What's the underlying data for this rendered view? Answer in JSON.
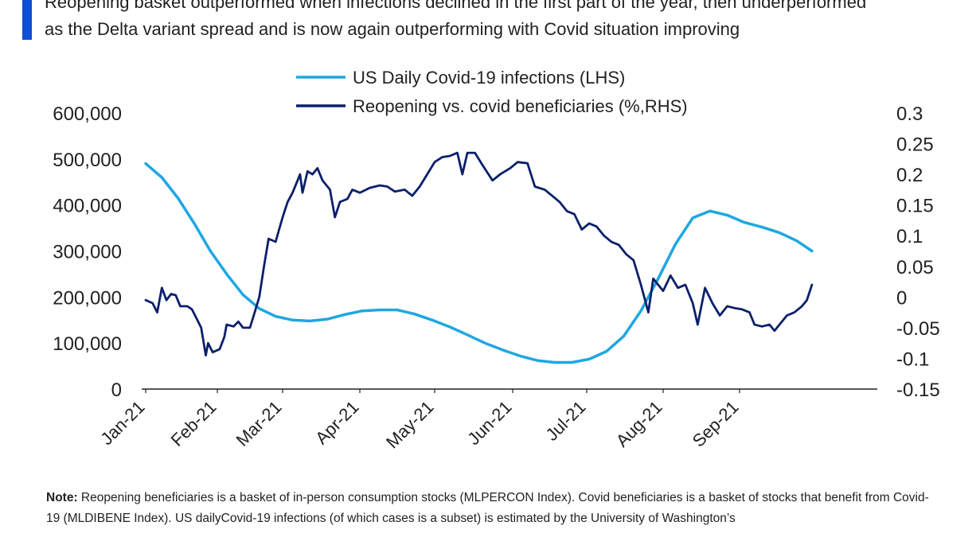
{
  "title_lines": [
    "Reopening basket outperformed when infections declined in the first part of the year, then underperformed",
    "as the Delta variant spread and is now again outperforming with Covid situation improving"
  ],
  "note": {
    "label": "Note:",
    "text": "Reopening  beneficiaries is a basket of in-person consumption   stocks (MLPERCON  Index).  Covid beneficiaries is a basket of stocks that benefit from Covid-19 (MLDIBENE Index).  US dailyCovid-19 infections (of which cases is a subset) is estimated by the University of Washington’s"
  },
  "colors": {
    "accent": "#0d4fd6",
    "infections": "#1ea7e1",
    "reopening": "#0b1f6b",
    "axis": "#222222"
  },
  "chart_data": {
    "type": "line",
    "x_tick_labels": [
      "Jan-21",
      "Feb-21",
      "Mar-21",
      "Apr-21",
      "May-21",
      "Jun-21",
      "Jul-21",
      "Aug-21",
      "Sep-21"
    ],
    "y_left": {
      "ylim": [
        0,
        600000
      ],
      "ticks": [
        0,
        100000,
        200000,
        300000,
        400000,
        500000,
        600000
      ],
      "tick_labels": [
        "0",
        "100,000",
        "200,000",
        "300,000",
        "400,000",
        "500,000",
        "600,000"
      ]
    },
    "y_right": {
      "ylim": [
        -0.15,
        0.3
      ],
      "ticks": [
        -0.15,
        -0.1,
        -0.05,
        0,
        0.05,
        0.1,
        0.15,
        0.2,
        0.25,
        0.3
      ],
      "tick_labels": [
        "-0.15",
        "-0.1",
        "-0.05",
        "0",
        "0.05",
        "0.1",
        "0.15",
        "0.2",
        "0.25",
        "0.3"
      ]
    },
    "legend_position": "top-center",
    "series": [
      {
        "name": "US Daily Covid-19 infections (LHS)",
        "axis": "left",
        "points": [
          [
            "2021-01-01",
            490000
          ],
          [
            "2021-01-08",
            460000
          ],
          [
            "2021-01-15",
            415000
          ],
          [
            "2021-01-22",
            360000
          ],
          [
            "2021-01-29",
            300000
          ],
          [
            "2021-02-05",
            250000
          ],
          [
            "2021-02-12",
            205000
          ],
          [
            "2021-02-19",
            175000
          ],
          [
            "2021-02-26",
            158000
          ],
          [
            "2021-03-05",
            150000
          ],
          [
            "2021-03-12",
            148000
          ],
          [
            "2021-03-19",
            152000
          ],
          [
            "2021-03-26",
            162000
          ],
          [
            "2021-04-02",
            170000
          ],
          [
            "2021-04-09",
            172000
          ],
          [
            "2021-04-16",
            172000
          ],
          [
            "2021-04-23",
            163000
          ],
          [
            "2021-04-30",
            150000
          ],
          [
            "2021-05-07",
            135000
          ],
          [
            "2021-05-14",
            118000
          ],
          [
            "2021-05-21",
            100000
          ],
          [
            "2021-05-28",
            85000
          ],
          [
            "2021-06-04",
            72000
          ],
          [
            "2021-06-11",
            62000
          ],
          [
            "2021-06-18",
            58000
          ],
          [
            "2021-06-25",
            58000
          ],
          [
            "2021-07-02",
            65000
          ],
          [
            "2021-07-09",
            82000
          ],
          [
            "2021-07-16",
            115000
          ],
          [
            "2021-07-23",
            170000
          ],
          [
            "2021-07-30",
            240000
          ],
          [
            "2021-08-06",
            315000
          ],
          [
            "2021-08-13",
            372000
          ],
          [
            "2021-08-20",
            387000
          ],
          [
            "2021-08-27",
            378000
          ],
          [
            "2021-09-03",
            362000
          ],
          [
            "2021-09-10",
            352000
          ],
          [
            "2021-09-17",
            340000
          ],
          [
            "2021-09-24",
            322000
          ],
          [
            "2021-09-30",
            300000
          ]
        ]
      },
      {
        "name": "Reopening vs. covid beneficiaries (%,RHS)",
        "axis": "right",
        "points": [
          [
            "2021-01-01",
            -0.005
          ],
          [
            "2021-01-04",
            -0.01
          ],
          [
            "2021-01-06",
            -0.025
          ],
          [
            "2021-01-08",
            0.015
          ],
          [
            "2021-01-10",
            -0.005
          ],
          [
            "2021-01-12",
            0.005
          ],
          [
            "2021-01-14",
            0.003
          ],
          [
            "2021-01-16",
            -0.015
          ],
          [
            "2021-01-19",
            -0.015
          ],
          [
            "2021-01-21",
            -0.02
          ],
          [
            "2021-01-23",
            -0.035
          ],
          [
            "2021-01-25",
            -0.05
          ],
          [
            "2021-01-27",
            -0.095
          ],
          [
            "2021-01-28",
            -0.075
          ],
          [
            "2021-01-30",
            -0.09
          ],
          [
            "2021-02-02",
            -0.085
          ],
          [
            "2021-02-04",
            -0.065
          ],
          [
            "2021-02-05",
            -0.045
          ],
          [
            "2021-02-08",
            -0.048
          ],
          [
            "2021-02-10",
            -0.04
          ],
          [
            "2021-02-12",
            -0.05
          ],
          [
            "2021-02-15",
            -0.05
          ],
          [
            "2021-02-17",
            -0.025
          ],
          [
            "2021-02-19",
            0.0
          ],
          [
            "2021-02-21",
            0.05
          ],
          [
            "2021-02-23",
            0.095
          ],
          [
            "2021-02-26",
            0.09
          ],
          [
            "2021-03-01",
            0.13
          ],
          [
            "2021-03-03",
            0.155
          ],
          [
            "2021-03-05",
            0.17
          ],
          [
            "2021-03-07",
            0.19
          ],
          [
            "2021-03-08",
            0.2
          ],
          [
            "2021-03-09",
            0.17
          ],
          [
            "2021-03-11",
            0.205
          ],
          [
            "2021-03-13",
            0.2
          ],
          [
            "2021-03-15",
            0.21
          ],
          [
            "2021-03-17",
            0.19
          ],
          [
            "2021-03-20",
            0.175
          ],
          [
            "2021-03-22",
            0.13
          ],
          [
            "2021-03-24",
            0.155
          ],
          [
            "2021-03-27",
            0.16
          ],
          [
            "2021-03-29",
            0.175
          ],
          [
            "2021-04-01",
            0.17
          ],
          [
            "2021-04-05",
            0.178
          ],
          [
            "2021-04-09",
            0.182
          ],
          [
            "2021-04-12",
            0.18
          ],
          [
            "2021-04-15",
            0.172
          ],
          [
            "2021-04-19",
            0.175
          ],
          [
            "2021-04-22",
            0.165
          ],
          [
            "2021-04-25",
            0.18
          ],
          [
            "2021-04-28",
            0.2
          ],
          [
            "2021-05-01",
            0.22
          ],
          [
            "2021-05-04",
            0.228
          ],
          [
            "2021-05-07",
            0.23
          ],
          [
            "2021-05-10",
            0.235
          ],
          [
            "2021-05-12",
            0.2
          ],
          [
            "2021-05-14",
            0.235
          ],
          [
            "2021-05-17",
            0.235
          ],
          [
            "2021-05-20",
            0.215
          ],
          [
            "2021-05-24",
            0.19
          ],
          [
            "2021-05-27",
            0.2
          ],
          [
            "2021-05-31",
            0.21
          ],
          [
            "2021-06-03",
            0.22
          ],
          [
            "2021-06-07",
            0.218
          ],
          [
            "2021-06-10",
            0.18
          ],
          [
            "2021-06-14",
            0.175
          ],
          [
            "2021-06-17",
            0.165
          ],
          [
            "2021-06-20",
            0.155
          ],
          [
            "2021-06-23",
            0.14
          ],
          [
            "2021-06-26",
            0.135
          ],
          [
            "2021-06-29",
            0.11
          ],
          [
            "2021-07-02",
            0.12
          ],
          [
            "2021-07-05",
            0.115
          ],
          [
            "2021-07-08",
            0.1
          ],
          [
            "2021-07-11",
            0.09
          ],
          [
            "2021-07-14",
            0.085
          ],
          [
            "2021-07-17",
            0.07
          ],
          [
            "2021-07-20",
            0.06
          ],
          [
            "2021-07-23",
            0.02
          ],
          [
            "2021-07-26",
            -0.025
          ],
          [
            "2021-07-28",
            0.03
          ],
          [
            "2021-08-01",
            0.01
          ],
          [
            "2021-08-04",
            0.035
          ],
          [
            "2021-08-07",
            0.015
          ],
          [
            "2021-08-10",
            0.02
          ],
          [
            "2021-08-13",
            -0.01
          ],
          [
            "2021-08-15",
            -0.045
          ],
          [
            "2021-08-18",
            0.015
          ],
          [
            "2021-08-21",
            -0.01
          ],
          [
            "2021-08-24",
            -0.03
          ],
          [
            "2021-08-27",
            -0.015
          ],
          [
            "2021-08-30",
            -0.018
          ],
          [
            "2021-09-02",
            -0.02
          ],
          [
            "2021-09-05",
            -0.025
          ],
          [
            "2021-09-07",
            -0.045
          ],
          [
            "2021-09-10",
            -0.048
          ],
          [
            "2021-09-13",
            -0.045
          ],
          [
            "2021-09-15",
            -0.055
          ],
          [
            "2021-09-17",
            -0.045
          ],
          [
            "2021-09-20",
            -0.03
          ],
          [
            "2021-09-23",
            -0.025
          ],
          [
            "2021-09-26",
            -0.015
          ],
          [
            "2021-09-28",
            -0.005
          ],
          [
            "2021-09-30",
            0.02
          ]
        ]
      }
    ]
  }
}
